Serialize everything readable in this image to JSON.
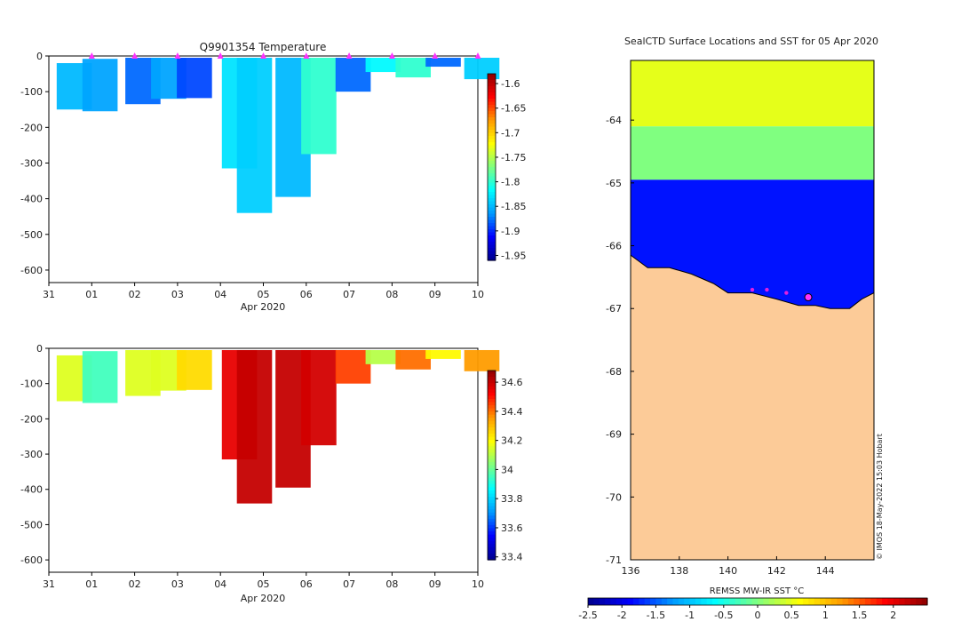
{
  "chart_data": [
    {
      "type": "heatmap",
      "title": "Q9901354  Temperature",
      "xlabel": "Apr 2020",
      "x_ticks": [
        "31",
        "01",
        "02",
        "03",
        "04",
        "05",
        "06",
        "07",
        "08",
        "09",
        "10"
      ],
      "y_ticks": [
        0,
        -100,
        -200,
        -300,
        -400,
        -500,
        -600
      ],
      "ylim": [
        -635,
        0
      ],
      "colorbar_ticks": [
        -1.6,
        -1.65,
        -1.7,
        -1.75,
        -1.8,
        -1.85,
        -1.9,
        -1.95
      ],
      "colorbar_range": [
        -1.96,
        -1.58
      ],
      "profiles": [
        {
          "day": 0.1,
          "d0": 20,
          "d1": 150,
          "value": -1.85
        },
        {
          "day": 0.7,
          "d0": 8,
          "d1": 155,
          "value": -1.86
        },
        {
          "day": 1.7,
          "d0": 5,
          "d1": 135,
          "value": -1.88
        },
        {
          "day": 2.3,
          "d0": 5,
          "d1": 120,
          "value": -1.86
        },
        {
          "day": 2.9,
          "d0": 5,
          "d1": 118,
          "value": -1.89
        },
        {
          "day": 3.95,
          "d0": 5,
          "d1": 315,
          "value": -1.83
        },
        {
          "day": 4.3,
          "d0": 5,
          "d1": 440,
          "value": -1.84
        },
        {
          "day": 5.2,
          "d0": 5,
          "d1": 395,
          "value": -1.85
        },
        {
          "day": 5.8,
          "d0": 5,
          "d1": 275,
          "value": -1.8
        },
        {
          "day": 6.6,
          "d0": 5,
          "d1": 100,
          "value": -1.88
        },
        {
          "day": 7.3,
          "d0": 5,
          "d1": 45,
          "value": -1.82
        },
        {
          "day": 8.0,
          "d0": 5,
          "d1": 60,
          "value": -1.8
        },
        {
          "day": 8.7,
          "d0": 5,
          "d1": 30,
          "value": -1.88
        },
        {
          "day": 9.6,
          "d0": 5,
          "d1": 65,
          "value": -1.84
        }
      ],
      "markers_day": [
        1,
        2,
        3,
        4,
        5,
        6,
        7,
        8,
        9,
        10
      ]
    },
    {
      "type": "heatmap",
      "title": "",
      "xlabel": "Apr 2020",
      "x_ticks": [
        "31",
        "01",
        "02",
        "03",
        "04",
        "05",
        "06",
        "07",
        "08",
        "09",
        "10"
      ],
      "y_ticks": [
        0,
        -100,
        -200,
        -300,
        -400,
        -500,
        -600
      ],
      "ylim": [
        -635,
        0
      ],
      "colorbar_ticks": [
        34.6,
        34.4,
        34.2,
        34,
        33.8,
        33.6,
        33.4
      ],
      "colorbar_range": [
        33.38,
        34.68
      ],
      "profiles": [
        {
          "day": 0.1,
          "d0": 20,
          "d1": 150,
          "value": 34.15
        },
        {
          "day": 0.7,
          "d0": 8,
          "d1": 155,
          "value": 33.95
        },
        {
          "day": 1.7,
          "d0": 5,
          "d1": 135,
          "value": 34.15
        },
        {
          "day": 2.3,
          "d0": 5,
          "d1": 120,
          "value": 34.15
        },
        {
          "day": 2.9,
          "d0": 5,
          "d1": 118,
          "value": 34.25
        },
        {
          "day": 3.95,
          "d0": 5,
          "d1": 315,
          "value": 34.55
        },
        {
          "day": 4.3,
          "d0": 5,
          "d1": 440,
          "value": 34.6
        },
        {
          "day": 5.2,
          "d0": 5,
          "d1": 395,
          "value": 34.6
        },
        {
          "day": 5.8,
          "d0": 5,
          "d1": 275,
          "value": 34.58
        },
        {
          "day": 6.6,
          "d0": 5,
          "d1": 100,
          "value": 34.45
        },
        {
          "day": 7.3,
          "d0": 5,
          "d1": 45,
          "value": 34.1
        },
        {
          "day": 8.0,
          "d0": 5,
          "d1": 60,
          "value": 34.4
        },
        {
          "day": 8.7,
          "d0": 5,
          "d1": 30,
          "value": 34.2
        },
        {
          "day": 9.6,
          "d0": 5,
          "d1": 65,
          "value": 34.35
        }
      ]
    },
    {
      "type": "heatmap",
      "title": "SealCTD Surface Locations and SST for 05 Apr 2020",
      "xlabel": "",
      "ylabel": "",
      "x_ticks": [
        136,
        138,
        140,
        142,
        144
      ],
      "y_ticks": [
        -64,
        -65,
        -66,
        -67,
        -68,
        -69,
        -70,
        -71
      ],
      "xlim": [
        136,
        146
      ],
      "ylim": [
        -71,
        -63.05
      ],
      "colorbar_label": "REMSS MW-IR SST °C",
      "colorbar_ticks": [
        -2.5,
        -2,
        -1.5,
        -1,
        -0.5,
        0,
        0.5,
        1,
        1.5,
        2
      ],
      "colorbar_range": [
        -2.5,
        2.5
      ],
      "sst_bands": [
        {
          "lat_top": -63.05,
          "lat_bottom": -64.1,
          "value": 0.5
        },
        {
          "lat_top": -64.1,
          "lat_bottom": -64.95,
          "value": 0.0
        },
        {
          "lat_top": -64.95,
          "lat_bottom": -67.0,
          "value": -1.8
        }
      ],
      "locations": [
        {
          "lon": 141.0,
          "lat": -66.7
        },
        {
          "lon": 141.6,
          "lat": -66.7
        },
        {
          "lon": 142.4,
          "lat": -66.75
        },
        {
          "lon": 143.3,
          "lat": -66.82
        }
      ],
      "credit": "© IMOS 18-May-2022 15:03 Hobart"
    }
  ]
}
